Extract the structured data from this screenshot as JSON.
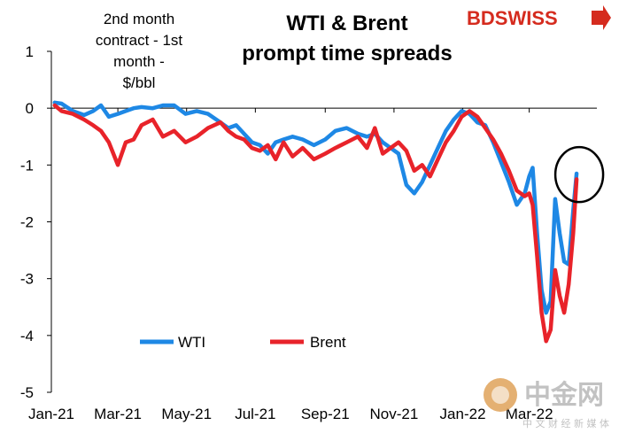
{
  "brand": {
    "name": "BDSWISS",
    "accent": "#d52b1e"
  },
  "watermark": {
    "main": "中金网",
    "sub": "中 文 财 经 新 媒 体"
  },
  "chart_data": {
    "type": "line",
    "title_line1": "WTI & Brent",
    "title_line2": "prompt time spreads",
    "ylabel_lines": [
      "2nd month",
      "contract - 1st",
      "month -",
      "$/bbl"
    ],
    "ylim": [
      -5,
      1
    ],
    "yticks": [
      1,
      0,
      -1,
      -2,
      -3,
      -4,
      -5
    ],
    "xlim": [
      "2021-01-01",
      "2022-04-30"
    ],
    "xticks": [
      {
        "date": "2021-01-01",
        "label": "Jan-21"
      },
      {
        "date": "2021-03-01",
        "label": "Mar-21"
      },
      {
        "date": "2021-05-01",
        "label": "May-21"
      },
      {
        "date": "2021-07-01",
        "label": "Jul-21"
      },
      {
        "date": "2021-09-01",
        "label": "Sep-21"
      },
      {
        "date": "2021-11-01",
        "label": "Nov-21"
      },
      {
        "date": "2022-01-01",
        "label": "Jan-22"
      },
      {
        "date": "2022-03-01",
        "label": "Mar-22"
      }
    ],
    "grid": false,
    "legend": "bottom-left",
    "series": [
      {
        "name": "WTI",
        "color": "#1e88e5",
        "points": [
          [
            "2021-01-04",
            0.1
          ],
          [
            "2021-01-10",
            0.08
          ],
          [
            "2021-01-20",
            -0.05
          ],
          [
            "2021-01-30",
            -0.12
          ],
          [
            "2021-02-07",
            -0.05
          ],
          [
            "2021-02-14",
            0.05
          ],
          [
            "2021-02-21",
            -0.15
          ],
          [
            "2021-03-01",
            -0.1
          ],
          [
            "2021-03-08",
            -0.05
          ],
          [
            "2021-03-15",
            0.0
          ],
          [
            "2021-03-22",
            0.02
          ],
          [
            "2021-04-01",
            0.0
          ],
          [
            "2021-04-10",
            0.05
          ],
          [
            "2021-04-20",
            0.05
          ],
          [
            "2021-04-30",
            -0.1
          ],
          [
            "2021-05-10",
            -0.05
          ],
          [
            "2021-05-20",
            -0.1
          ],
          [
            "2021-05-31",
            -0.25
          ],
          [
            "2021-06-07",
            -0.35
          ],
          [
            "2021-06-14",
            -0.3
          ],
          [
            "2021-06-21",
            -0.45
          ],
          [
            "2021-06-28",
            -0.6
          ],
          [
            "2021-07-05",
            -0.65
          ],
          [
            "2021-07-12",
            -0.8
          ],
          [
            "2021-07-19",
            -0.6
          ],
          [
            "2021-07-26",
            -0.55
          ],
          [
            "2021-08-03",
            -0.5
          ],
          [
            "2021-08-12",
            -0.55
          ],
          [
            "2021-08-22",
            -0.65
          ],
          [
            "2021-09-01",
            -0.55
          ],
          [
            "2021-09-10",
            -0.4
          ],
          [
            "2021-09-20",
            -0.35
          ],
          [
            "2021-09-30",
            -0.45
          ],
          [
            "2021-10-08",
            -0.5
          ],
          [
            "2021-10-15",
            -0.45
          ],
          [
            "2021-10-22",
            -0.6
          ],
          [
            "2021-10-29",
            -0.7
          ],
          [
            "2021-11-05",
            -0.8
          ],
          [
            "2021-11-12",
            -1.35
          ],
          [
            "2021-11-19",
            -1.5
          ],
          [
            "2021-11-26",
            -1.3
          ],
          [
            "2021-12-03",
            -1.0
          ],
          [
            "2021-12-10",
            -0.7
          ],
          [
            "2021-12-17",
            -0.4
          ],
          [
            "2021-12-24",
            -0.2
          ],
          [
            "2021-12-31",
            -0.05
          ],
          [
            "2022-01-07",
            -0.1
          ],
          [
            "2022-01-14",
            -0.25
          ],
          [
            "2022-01-21",
            -0.3
          ],
          [
            "2022-01-28",
            -0.6
          ],
          [
            "2022-02-04",
            -0.95
          ],
          [
            "2022-02-11",
            -1.3
          ],
          [
            "2022-02-18",
            -1.7
          ],
          [
            "2022-02-25",
            -1.5
          ],
          [
            "2022-03-01",
            -1.2
          ],
          [
            "2022-03-04",
            -1.05
          ],
          [
            "2022-03-08",
            -2.2
          ],
          [
            "2022-03-12",
            -3.2
          ],
          [
            "2022-03-16",
            -3.6
          ],
          [
            "2022-03-20",
            -3.4
          ],
          [
            "2022-03-24",
            -1.6
          ],
          [
            "2022-03-28",
            -2.2
          ],
          [
            "2022-04-01",
            -2.7
          ],
          [
            "2022-04-05",
            -2.75
          ],
          [
            "2022-04-09",
            -1.8
          ],
          [
            "2022-04-12",
            -1.15
          ]
        ]
      },
      {
        "name": "Brent",
        "color": "#e8232a",
        "points": [
          [
            "2021-01-04",
            0.05
          ],
          [
            "2021-01-10",
            -0.05
          ],
          [
            "2021-01-20",
            -0.1
          ],
          [
            "2021-01-30",
            -0.2
          ],
          [
            "2021-02-07",
            -0.3
          ],
          [
            "2021-02-14",
            -0.4
          ],
          [
            "2021-02-21",
            -0.6
          ],
          [
            "2021-03-01",
            -1.0
          ],
          [
            "2021-03-08",
            -0.6
          ],
          [
            "2021-03-15",
            -0.55
          ],
          [
            "2021-03-22",
            -0.3
          ],
          [
            "2021-04-01",
            -0.2
          ],
          [
            "2021-04-10",
            -0.5
          ],
          [
            "2021-04-20",
            -0.4
          ],
          [
            "2021-04-30",
            -0.6
          ],
          [
            "2021-05-10",
            -0.5
          ],
          [
            "2021-05-20",
            -0.35
          ],
          [
            "2021-05-31",
            -0.25
          ],
          [
            "2021-06-07",
            -0.4
          ],
          [
            "2021-06-14",
            -0.5
          ],
          [
            "2021-06-21",
            -0.55
          ],
          [
            "2021-06-28",
            -0.7
          ],
          [
            "2021-07-05",
            -0.75
          ],
          [
            "2021-07-12",
            -0.65
          ],
          [
            "2021-07-19",
            -0.9
          ],
          [
            "2021-07-26",
            -0.6
          ],
          [
            "2021-08-03",
            -0.85
          ],
          [
            "2021-08-12",
            -0.7
          ],
          [
            "2021-08-22",
            -0.9
          ],
          [
            "2021-09-01",
            -0.8
          ],
          [
            "2021-09-10",
            -0.7
          ],
          [
            "2021-09-20",
            -0.6
          ],
          [
            "2021-09-30",
            -0.5
          ],
          [
            "2021-10-08",
            -0.7
          ],
          [
            "2021-10-15",
            -0.35
          ],
          [
            "2021-10-22",
            -0.8
          ],
          [
            "2021-10-29",
            -0.7
          ],
          [
            "2021-11-05",
            -0.6
          ],
          [
            "2021-11-12",
            -0.75
          ],
          [
            "2021-11-19",
            -1.1
          ],
          [
            "2021-11-26",
            -1.0
          ],
          [
            "2021-12-03",
            -1.2
          ],
          [
            "2021-12-10",
            -0.9
          ],
          [
            "2021-12-17",
            -0.6
          ],
          [
            "2021-12-24",
            -0.4
          ],
          [
            "2021-12-31",
            -0.15
          ],
          [
            "2022-01-07",
            -0.05
          ],
          [
            "2022-01-14",
            -0.15
          ],
          [
            "2022-01-21",
            -0.35
          ],
          [
            "2022-01-28",
            -0.55
          ],
          [
            "2022-02-04",
            -0.8
          ],
          [
            "2022-02-11",
            -1.1
          ],
          [
            "2022-02-18",
            -1.45
          ],
          [
            "2022-02-25",
            -1.55
          ],
          [
            "2022-03-01",
            -1.5
          ],
          [
            "2022-03-04",
            -1.7
          ],
          [
            "2022-03-08",
            -2.6
          ],
          [
            "2022-03-12",
            -3.6
          ],
          [
            "2022-03-16",
            -4.1
          ],
          [
            "2022-03-20",
            -3.9
          ],
          [
            "2022-03-24",
            -2.85
          ],
          [
            "2022-03-28",
            -3.3
          ],
          [
            "2022-04-01",
            -3.6
          ],
          [
            "2022-04-05",
            -3.1
          ],
          [
            "2022-04-09",
            -2.2
          ],
          [
            "2022-04-12",
            -1.25
          ]
        ]
      }
    ],
    "annotations": [
      {
        "type": "circle-highlight",
        "date": "2022-04-12",
        "value": -1.2
      }
    ]
  }
}
